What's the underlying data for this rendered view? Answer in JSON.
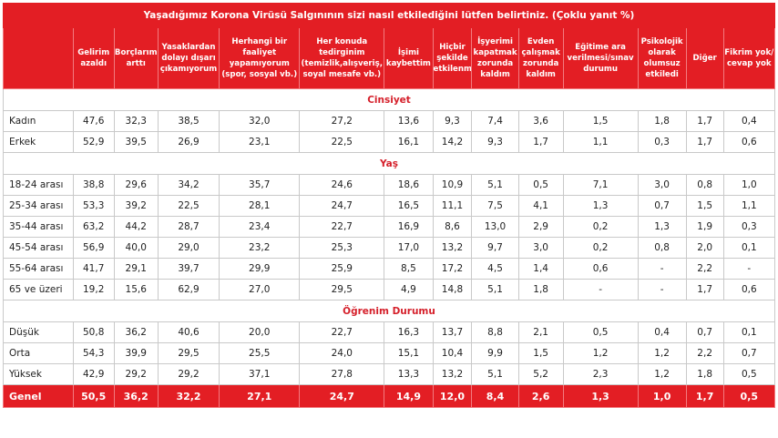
{
  "title": "Yaşadığımız Korona Virüsü Salgınının sizi nasıl etkilediğini lütfen belirtiniz. (Çoklu yanıt %)",
  "columns": [
    "",
    "Gelirim azaldı",
    "Borçlarım arttı",
    "Yasaklardan dolayı dışarı çıkamıyorum",
    "Herhangi bir faaliyet yapamıyorum (spor, sosyal vb.)",
    "Her konuda tedirginim (temizlik,alışveriş, soyal mesafe vb.)",
    "İşimi kaybettim",
    "Hiçbir şekilde etkilenmedi",
    "İşyerimi kapatmak zorunda kaldım",
    "Evden çalışmak zorunda kaldım",
    "Eğitime ara verilmesi/sınav durumu",
    "Psikolojik olarak olumsuz etkiledi",
    "Diğer",
    "Fikrim yok/ cevap yok"
  ],
  "sections": [
    {
      "name": "Cinsiyet",
      "rows": [
        {
          "label": "Kadın",
          "values": [
            "47,6",
            "32,3",
            "38,5",
            "32,0",
            "27,2",
            "13,6",
            "9,3",
            "7,4",
            "3,6",
            "1,5",
            "1,8",
            "1,7",
            "0,4"
          ]
        },
        {
          "label": "Erkek",
          "values": [
            "52,9",
            "39,5",
            "26,9",
            "23,1",
            "22,5",
            "16,1",
            "14,2",
            "9,3",
            "1,7",
            "1,1",
            "0,3",
            "1,7",
            "0,6"
          ]
        }
      ]
    },
    {
      "name": "Yaş",
      "rows": [
        {
          "label": "18-24 arası",
          "values": [
            "38,8",
            "29,6",
            "34,2",
            "35,7",
            "24,6",
            "18,6",
            "10,9",
            "5,1",
            "0,5",
            "7,1",
            "3,0",
            "0,8",
            "1,0"
          ]
        },
        {
          "label": "25-34 arası",
          "values": [
            "53,3",
            "39,2",
            "22,5",
            "28,1",
            "24,7",
            "16,5",
            "11,1",
            "7,5",
            "4,1",
            "1,3",
            "0,7",
            "1,5",
            "1,1"
          ]
        },
        {
          "label": "35-44 arası",
          "values": [
            "63,2",
            "44,2",
            "28,7",
            "23,4",
            "22,7",
            "16,9",
            "8,6",
            "13,0",
            "2,9",
            "0,2",
            "1,3",
            "1,9",
            "0,3"
          ]
        },
        {
          "label": "45-54 arası",
          "values": [
            "56,9",
            "40,0",
            "29,0",
            "23,2",
            "25,3",
            "17,0",
            "13,2",
            "9,7",
            "3,0",
            "0,2",
            "0,8",
            "2,0",
            "0,1"
          ]
        },
        {
          "label": "55-64 arası",
          "values": [
            "41,7",
            "29,1",
            "39,7",
            "29,9",
            "25,9",
            "8,5",
            "17,2",
            "4,5",
            "1,4",
            "0,6",
            "-",
            "2,2",
            "-"
          ]
        },
        {
          "label": "65 ve üzeri",
          "values": [
            "19,2",
            "15,6",
            "62,9",
            "27,0",
            "29,5",
            "4,9",
            "14,8",
            "5,1",
            "1,8",
            "-",
            "-",
            "1,7",
            "0,6"
          ]
        }
      ]
    },
    {
      "name": "Öğrenim Durumu",
      "rows": [
        {
          "label": "Düşük",
          "values": [
            "50,8",
            "36,2",
            "40,6",
            "20,0",
            "22,7",
            "16,3",
            "13,7",
            "8,8",
            "2,1",
            "0,5",
            "0,4",
            "0,7",
            "0,1"
          ]
        },
        {
          "label": "Orta",
          "values": [
            "54,3",
            "39,9",
            "29,5",
            "25,5",
            "24,0",
            "15,1",
            "10,4",
            "9,9",
            "1,5",
            "1,2",
            "1,2",
            "2,2",
            "0,7"
          ]
        },
        {
          "label": "Yüksek",
          "values": [
            "42,9",
            "29,2",
            "29,2",
            "37,1",
            "27,8",
            "13,3",
            "13,2",
            "5,1",
            "5,2",
            "2,3",
            "1,2",
            "1,8",
            "0,5"
          ]
        }
      ]
    }
  ],
  "total": {
    "label": "Genel",
    "values": [
      "50,5",
      "36,2",
      "32,2",
      "27,1",
      "24,7",
      "14,9",
      "12,0",
      "8,4",
      "2,6",
      "1,3",
      "1,0",
      "1,7",
      "0,5"
    ]
  }
}
